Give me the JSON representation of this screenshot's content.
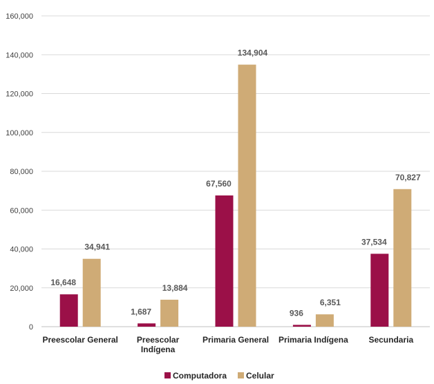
{
  "chart_data": {
    "type": "bar",
    "categories": [
      [
        "Preescolar General"
      ],
      [
        "Preescolar",
        "Indígena"
      ],
      [
        "Primaria General"
      ],
      [
        "Primaria Indígena"
      ],
      [
        "Secundaria"
      ]
    ],
    "series": [
      {
        "name": "Computadora",
        "color": "#9b1048",
        "values": [
          16648,
          1687,
          67560,
          936,
          37534
        ],
        "labels": [
          "16,648",
          "1,687",
          "67,560",
          "936",
          "37,534"
        ]
      },
      {
        "name": "Celular",
        "color": "#cfab76",
        "values": [
          34941,
          13884,
          134904,
          6351,
          70827
        ],
        "labels": [
          "34,941",
          "13,884",
          "134,904",
          "6,351",
          "70,827"
        ]
      }
    ],
    "yticks": [
      "0",
      "20,000",
      "40,000",
      "60,000",
      "80,000",
      "100,000",
      "120,000",
      "140,000",
      "160,000"
    ],
    "ylim": [
      0,
      160000
    ],
    "grid": true,
    "legend_position": "bottom",
    "title": "",
    "xlabel": "",
    "ylabel": ""
  }
}
